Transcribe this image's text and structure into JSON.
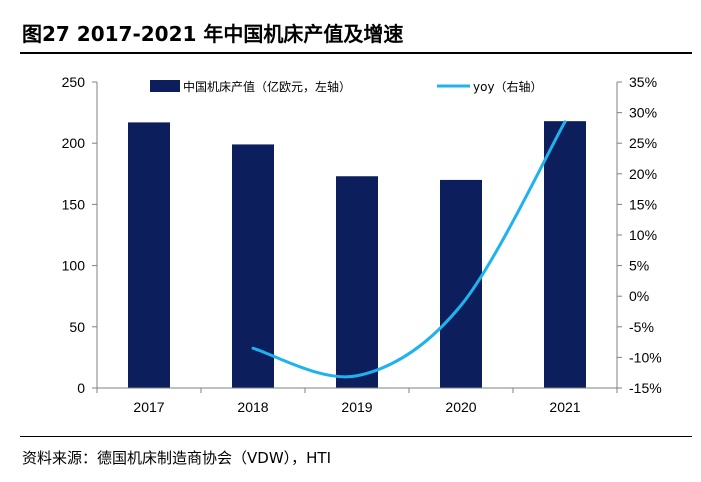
{
  "header": {
    "title": "图27 2017-2021 年中国机床产值及增速"
  },
  "footer": {
    "source": "资料来源：德国机床制造商协会（VDW），HTI"
  },
  "colors": {
    "bar": "#0c1f5c",
    "line": "#1fb2ee",
    "axis": "#808080"
  },
  "chart_data": {
    "type": "bar",
    "title": "",
    "categories": [
      "2017",
      "2018",
      "2019",
      "2020",
      "2021"
    ],
    "series": [
      {
        "name": "中国机床产值（亿欧元，左轴）",
        "type": "bar",
        "axis": "left",
        "values": [
          217,
          199,
          173,
          170,
          218
        ]
      },
      {
        "name": "yoy（右轴）",
        "type": "line",
        "axis": "right",
        "values": [
          null,
          -8.5,
          -13,
          -1.5,
          28.5
        ]
      }
    ],
    "left_axis": {
      "min": 0,
      "max": 250,
      "step": 50,
      "ticks": [
        "0",
        "50",
        "100",
        "150",
        "200",
        "250"
      ]
    },
    "right_axis": {
      "min": -15,
      "max": 35,
      "step": 5,
      "ticks": [
        "-15%",
        "-10%",
        "-5%",
        "0%",
        "5%",
        "10%",
        "15%",
        "20%",
        "25%",
        "30%",
        "35%"
      ]
    },
    "grid": false,
    "legend": "top"
  }
}
